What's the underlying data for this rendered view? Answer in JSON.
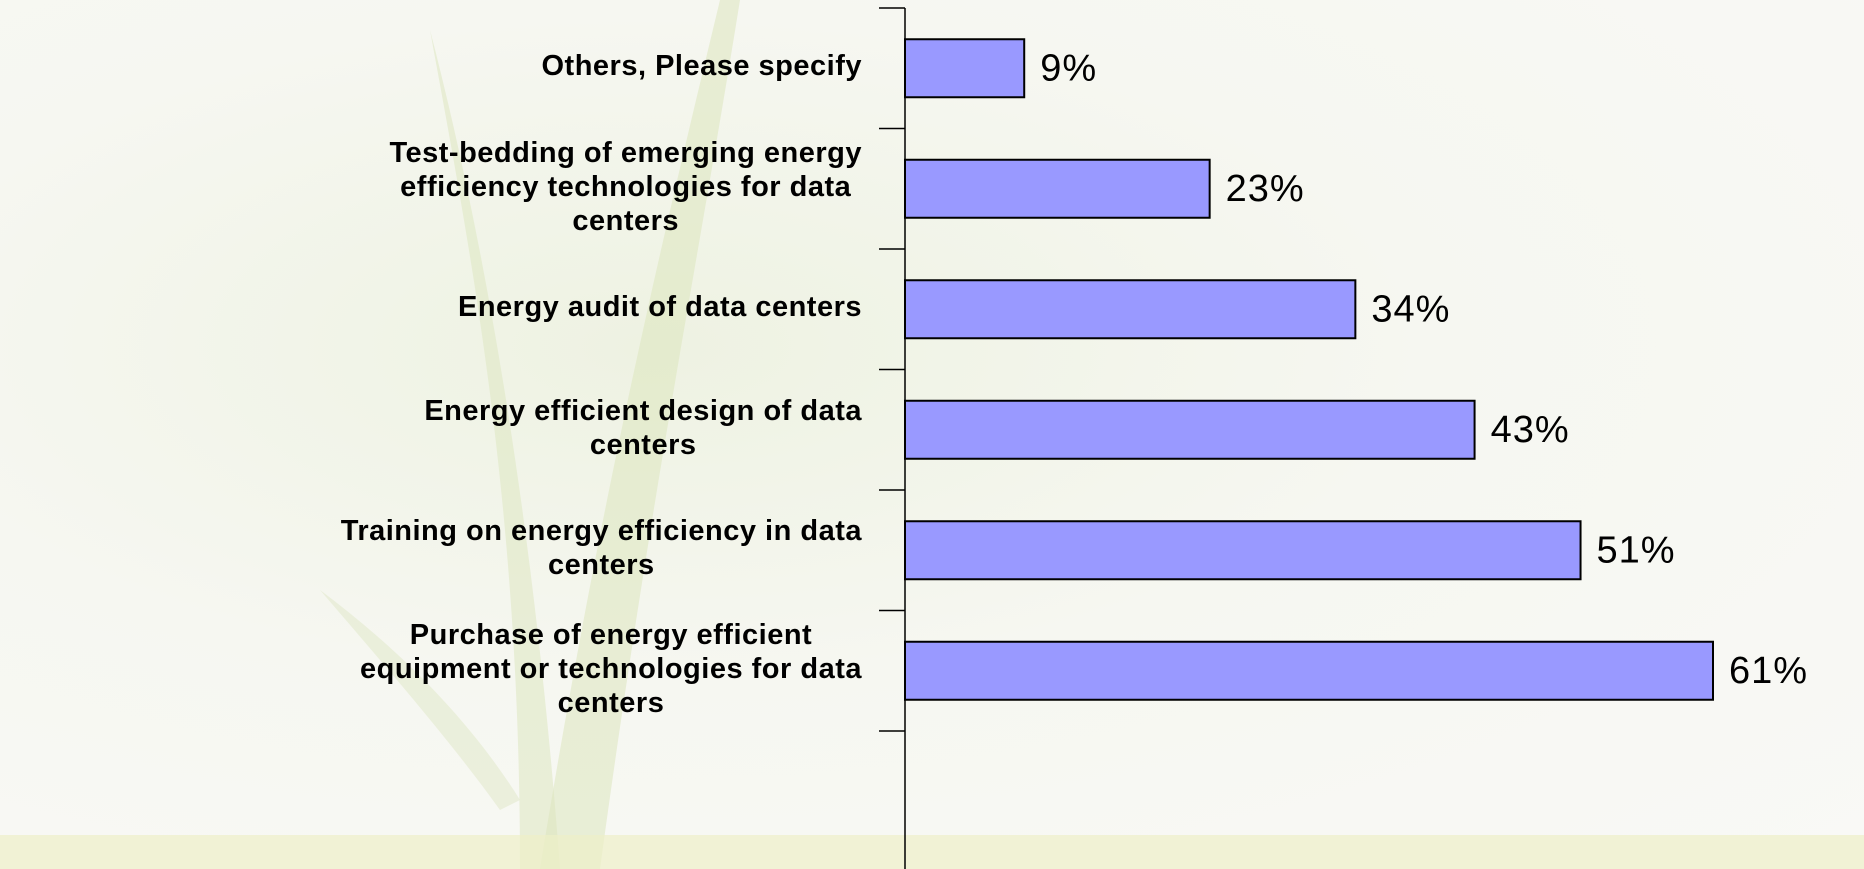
{
  "chart_data": {
    "type": "barh",
    "categories": [
      "Others, Please specify",
      "Test-bedding of emerging energy\nefficiency technologies for data\ncenters",
      "Energy audit of data centers",
      "Energy efficient design of data\ncenters",
      "Training on energy efficiency in data\ncenters",
      "Purchase of energy efficient\nequipment or technologies for data\ncenters"
    ],
    "values": [
      9,
      23,
      34,
      43,
      51,
      61
    ],
    "value_labels": [
      "9%",
      "23%",
      "34%",
      "43%",
      "51%",
      "61%"
    ],
    "color": "#9999ff"
  }
}
